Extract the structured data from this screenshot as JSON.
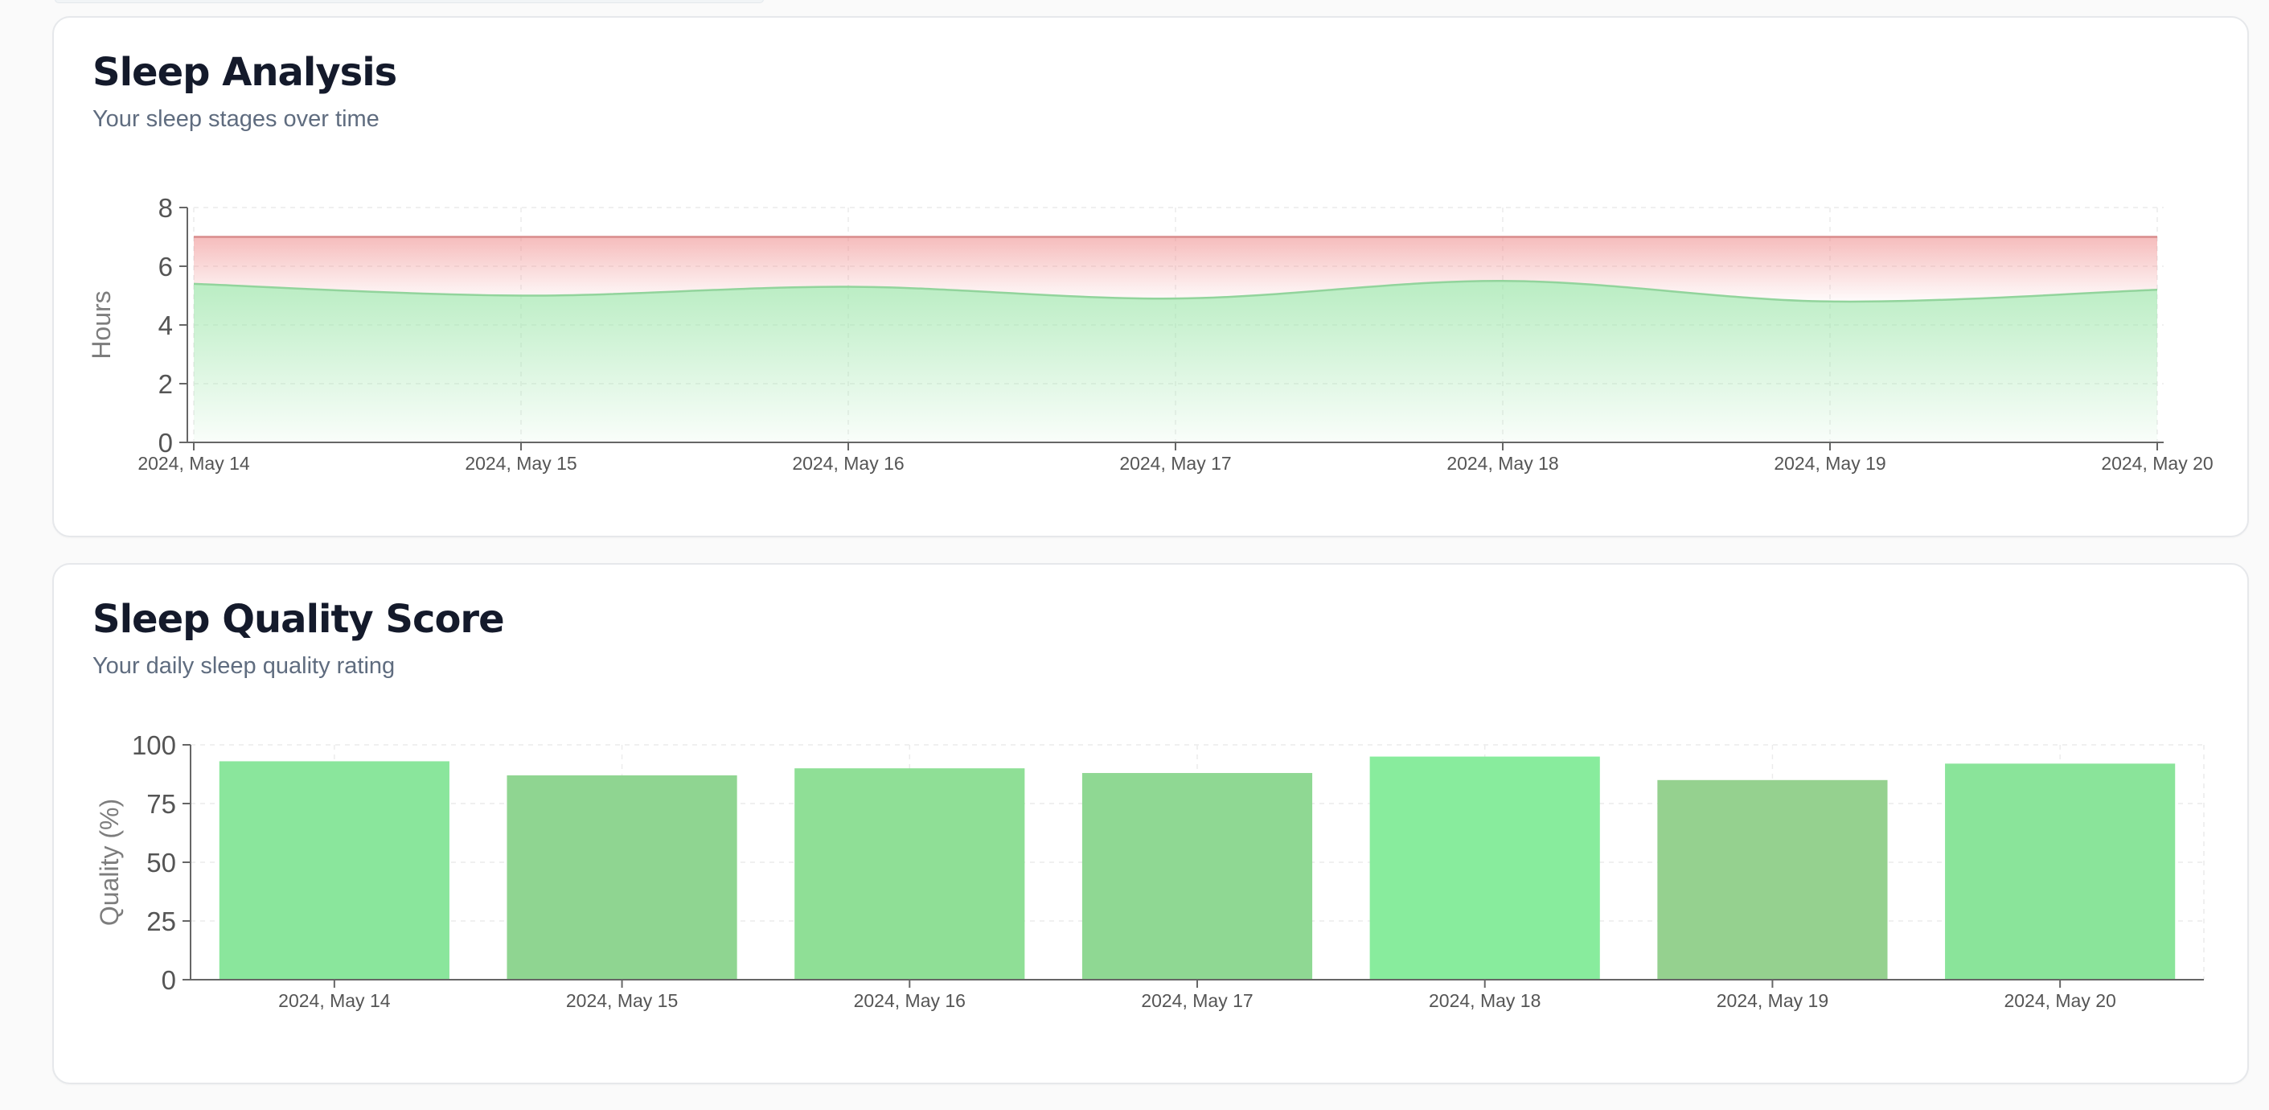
{
  "cards": {
    "analysis": {
      "title": "Sleep Analysis",
      "subtitle": "Your sleep stages over time"
    },
    "quality": {
      "title": "Sleep Quality Score",
      "subtitle": "Your daily sleep quality rating"
    }
  },
  "chart_data": [
    {
      "type": "area",
      "title": "Sleep Analysis",
      "subtitle": "Your sleep stages over time",
      "xlabel": "",
      "ylabel": "Hours",
      "x": [
        "2024, May 14",
        "2024, May 15",
        "2024, May 16",
        "2024, May 17",
        "2024, May 18",
        "2024, May 19",
        "2024, May 20"
      ],
      "ylim": [
        0,
        8
      ],
      "yticks": [
        0,
        2,
        4,
        6,
        8
      ],
      "grid": true,
      "stacked": true,
      "series": [
        {
          "values": [
            5.4,
            5.0,
            5.3,
            4.9,
            5.5,
            4.8,
            5.2
          ],
          "color": "#7fd98d"
        },
        {
          "values": [
            1.6,
            2.0,
            1.7,
            2.1,
            1.5,
            2.2,
            1.8
          ],
          "color": "#ef8585"
        }
      ]
    },
    {
      "type": "bar",
      "title": "Sleep Quality Score",
      "subtitle": "Your daily sleep quality rating",
      "xlabel": "",
      "ylabel": "Quality (%)",
      "categories": [
        "2024, May 14",
        "2024, May 15",
        "2024, May 16",
        "2024, May 17",
        "2024, May 18",
        "2024, May 19",
        "2024, May 20"
      ],
      "values": [
        93,
        87,
        90,
        88,
        95,
        85,
        92
      ],
      "colors": [
        "#8ae69c",
        "#8fd591",
        "#8fdf96",
        "#8fd893",
        "#88ec9d",
        "#95d18f",
        "#8ae49a"
      ],
      "ylim": [
        0,
        100
      ],
      "yticks": [
        0,
        25,
        50,
        75,
        100
      ],
      "grid": true
    }
  ]
}
